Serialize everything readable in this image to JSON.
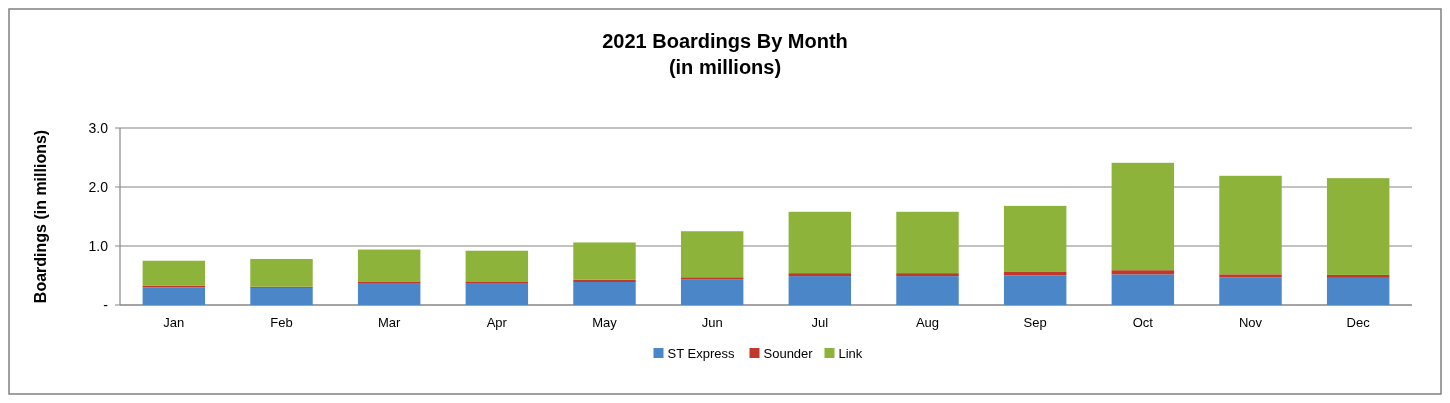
{
  "chart_data": {
    "type": "bar",
    "title": "2021 Boardings By Month\n(in millions)",
    "ylabel": "Boardings (in millions)",
    "categories": [
      "Jan",
      "Feb",
      "Mar",
      "Apr",
      "May",
      "Jun",
      "Jul",
      "Aug",
      "Sep",
      "Oct",
      "Nov",
      "Dec"
    ],
    "series": [
      {
        "name": "ST Express",
        "color": "#4a86c8",
        "values": [
          0.3,
          0.29,
          0.36,
          0.36,
          0.39,
          0.43,
          0.49,
          0.49,
          0.5,
          0.52,
          0.47,
          0.46
        ]
      },
      {
        "name": "Sounder",
        "color": "#c0392b",
        "values": [
          0.03,
          0.02,
          0.04,
          0.03,
          0.04,
          0.04,
          0.05,
          0.05,
          0.06,
          0.07,
          0.05,
          0.05
        ]
      },
      {
        "name": "Link",
        "color": "#8db33a",
        "values": [
          0.42,
          0.47,
          0.54,
          0.53,
          0.63,
          0.78,
          1.04,
          1.04,
          1.12,
          1.82,
          1.67,
          1.64
        ]
      }
    ],
    "stacked": true,
    "ylim": [
      0,
      3
    ],
    "yticks": [
      {
        "value": 0,
        "label": "-"
      },
      {
        "value": 1,
        "label": "1.0"
      },
      {
        "value": 2,
        "label": "2.0"
      },
      {
        "value": 3,
        "label": "3.0"
      }
    ],
    "grid": "y",
    "legend": "bottom"
  }
}
